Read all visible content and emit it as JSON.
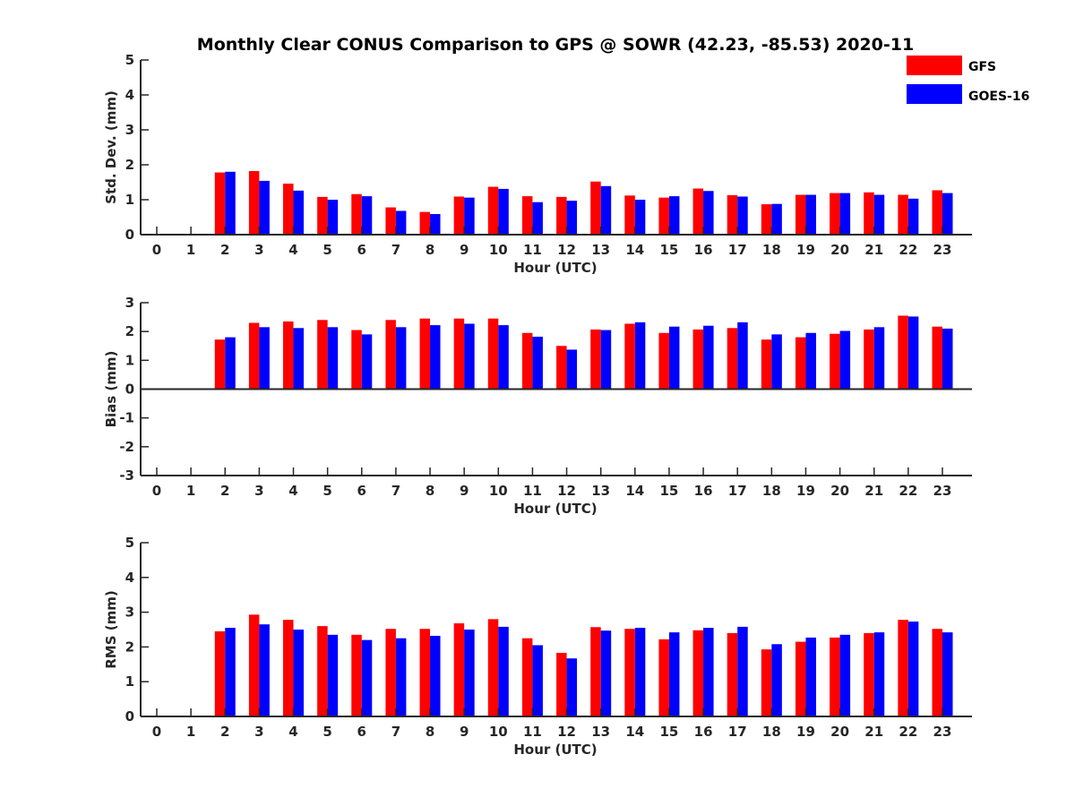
{
  "figure": {
    "title": "Monthly Clear CONUS Comparison to GPS @ SOWR (42.23, -85.53) 2020-11",
    "legend": {
      "position": "top-right",
      "entries": [
        {
          "name": "GFS",
          "color": "#ff0000"
        },
        {
          "name": "GOES-16",
          "color": "#0000ff"
        }
      ]
    }
  },
  "chart_data": [
    {
      "type": "bar",
      "xlabel": "Hour (UTC)",
      "ylabel": "Std. Dev. (mm)",
      "ylim": [
        0,
        5
      ],
      "yticks": [
        0,
        1,
        2,
        3,
        4,
        5
      ],
      "categories": [
        "0",
        "1",
        "2",
        "3",
        "4",
        "5",
        "6",
        "7",
        "8",
        "9",
        "10",
        "11",
        "12",
        "13",
        "14",
        "15",
        "16",
        "17",
        "18",
        "19",
        "20",
        "21",
        "22",
        "23"
      ],
      "series": [
        {
          "name": "GFS",
          "color": "#ff0000",
          "values": [
            null,
            null,
            1.78,
            1.82,
            1.46,
            1.08,
            1.16,
            0.78,
            0.65,
            1.09,
            1.37,
            1.1,
            1.08,
            1.52,
            1.12,
            1.06,
            1.32,
            1.13,
            0.87,
            1.14,
            1.19,
            1.21,
            1.14,
            1.27
          ]
        },
        {
          "name": "GOES-16",
          "color": "#0000ff",
          "values": [
            null,
            null,
            1.8,
            1.54,
            1.26,
            1.0,
            1.1,
            0.68,
            0.59,
            1.06,
            1.31,
            0.93,
            0.97,
            1.39,
            1.0,
            1.1,
            1.25,
            1.09,
            0.88,
            1.14,
            1.19,
            1.14,
            1.03,
            1.19
          ]
        }
      ]
    },
    {
      "type": "bar",
      "xlabel": "Hour (UTC)",
      "ylabel": "Bias (mm)",
      "ylim": [
        -3,
        3
      ],
      "yticks": [
        -3,
        -2,
        -1,
        0,
        1,
        2,
        3
      ],
      "categories": [
        "0",
        "1",
        "2",
        "3",
        "4",
        "5",
        "6",
        "7",
        "8",
        "9",
        "10",
        "11",
        "12",
        "13",
        "14",
        "15",
        "16",
        "17",
        "18",
        "19",
        "20",
        "21",
        "22",
        "23"
      ],
      "series": [
        {
          "name": "GFS",
          "color": "#ff0000",
          "values": [
            null,
            null,
            1.72,
            2.3,
            2.35,
            2.4,
            2.05,
            2.4,
            2.45,
            2.45,
            2.45,
            1.95,
            1.5,
            2.07,
            2.27,
            1.95,
            2.07,
            2.12,
            1.72,
            1.8,
            1.92,
            2.07,
            2.55,
            2.17
          ]
        },
        {
          "name": "GOES-16",
          "color": "#0000ff",
          "values": [
            null,
            null,
            1.8,
            2.15,
            2.12,
            2.15,
            1.9,
            2.15,
            2.22,
            2.27,
            2.22,
            1.82,
            1.37,
            2.05,
            2.32,
            2.17,
            2.2,
            2.32,
            1.9,
            1.95,
            2.02,
            2.15,
            2.52,
            2.1
          ]
        }
      ]
    },
    {
      "type": "bar",
      "xlabel": "Hour (UTC)",
      "ylabel": "RMS (mm)",
      "ylim": [
        0,
        5
      ],
      "yticks": [
        0,
        1,
        2,
        3,
        4,
        5
      ],
      "categories": [
        "0",
        "1",
        "2",
        "3",
        "4",
        "5",
        "6",
        "7",
        "8",
        "9",
        "10",
        "11",
        "12",
        "13",
        "14",
        "15",
        "16",
        "17",
        "18",
        "19",
        "20",
        "21",
        "22",
        "23"
      ],
      "series": [
        {
          "name": "GFS",
          "color": "#ff0000",
          "values": [
            null,
            null,
            2.45,
            2.93,
            2.78,
            2.6,
            2.35,
            2.52,
            2.52,
            2.68,
            2.8,
            2.25,
            1.83,
            2.57,
            2.52,
            2.22,
            2.48,
            2.4,
            1.93,
            2.15,
            2.27,
            2.4,
            2.78,
            2.52
          ]
        },
        {
          "name": "GOES-16",
          "color": "#0000ff",
          "values": [
            null,
            null,
            2.55,
            2.65,
            2.5,
            2.35,
            2.2,
            2.25,
            2.32,
            2.5,
            2.58,
            2.05,
            1.67,
            2.47,
            2.55,
            2.42,
            2.55,
            2.58,
            2.08,
            2.27,
            2.35,
            2.42,
            2.73,
            2.42
          ]
        }
      ]
    }
  ]
}
